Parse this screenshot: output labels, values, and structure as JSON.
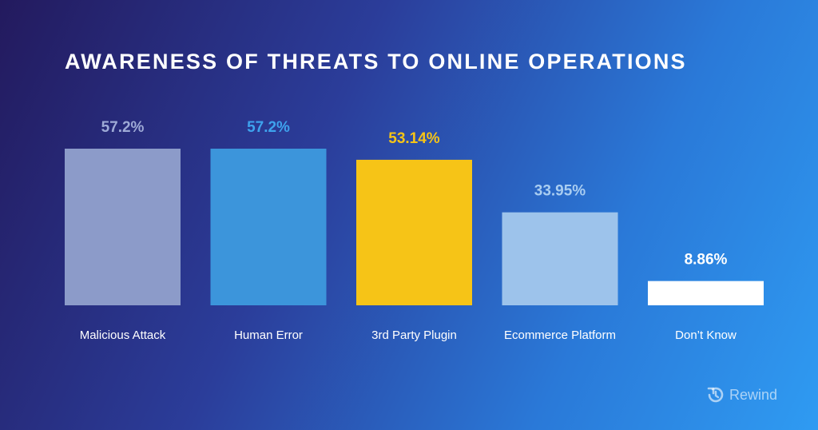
{
  "chart_data": {
    "type": "bar",
    "title": "AWARENESS OF THREATS TO ONLINE OPERATIONS",
    "categories": [
      "Malicious Attack",
      "Human Error",
      "3rd Party Plugin",
      "Ecommerce Platform",
      "Don’t Know"
    ],
    "values": [
      57.2,
      57.2,
      53.14,
      33.95,
      8.86
    ],
    "value_labels": [
      "57.2%",
      "57.2%",
      "53.14%",
      "33.95%",
      "8.86%"
    ],
    "bar_colors": [
      "#8c9bc9",
      "#3c95db",
      "#f6c417",
      "#9dc3eb",
      "#ffffff"
    ],
    "label_colors": [
      "#9eaad6",
      "#3ea3ee",
      "#f6c417",
      "#a9cdf1",
      "#ffffff"
    ],
    "ylim": [
      0,
      57.2
    ],
    "grid": false,
    "legend": "none"
  },
  "brand": {
    "name": "Rewind",
    "icon": "rewind-logo-icon"
  }
}
